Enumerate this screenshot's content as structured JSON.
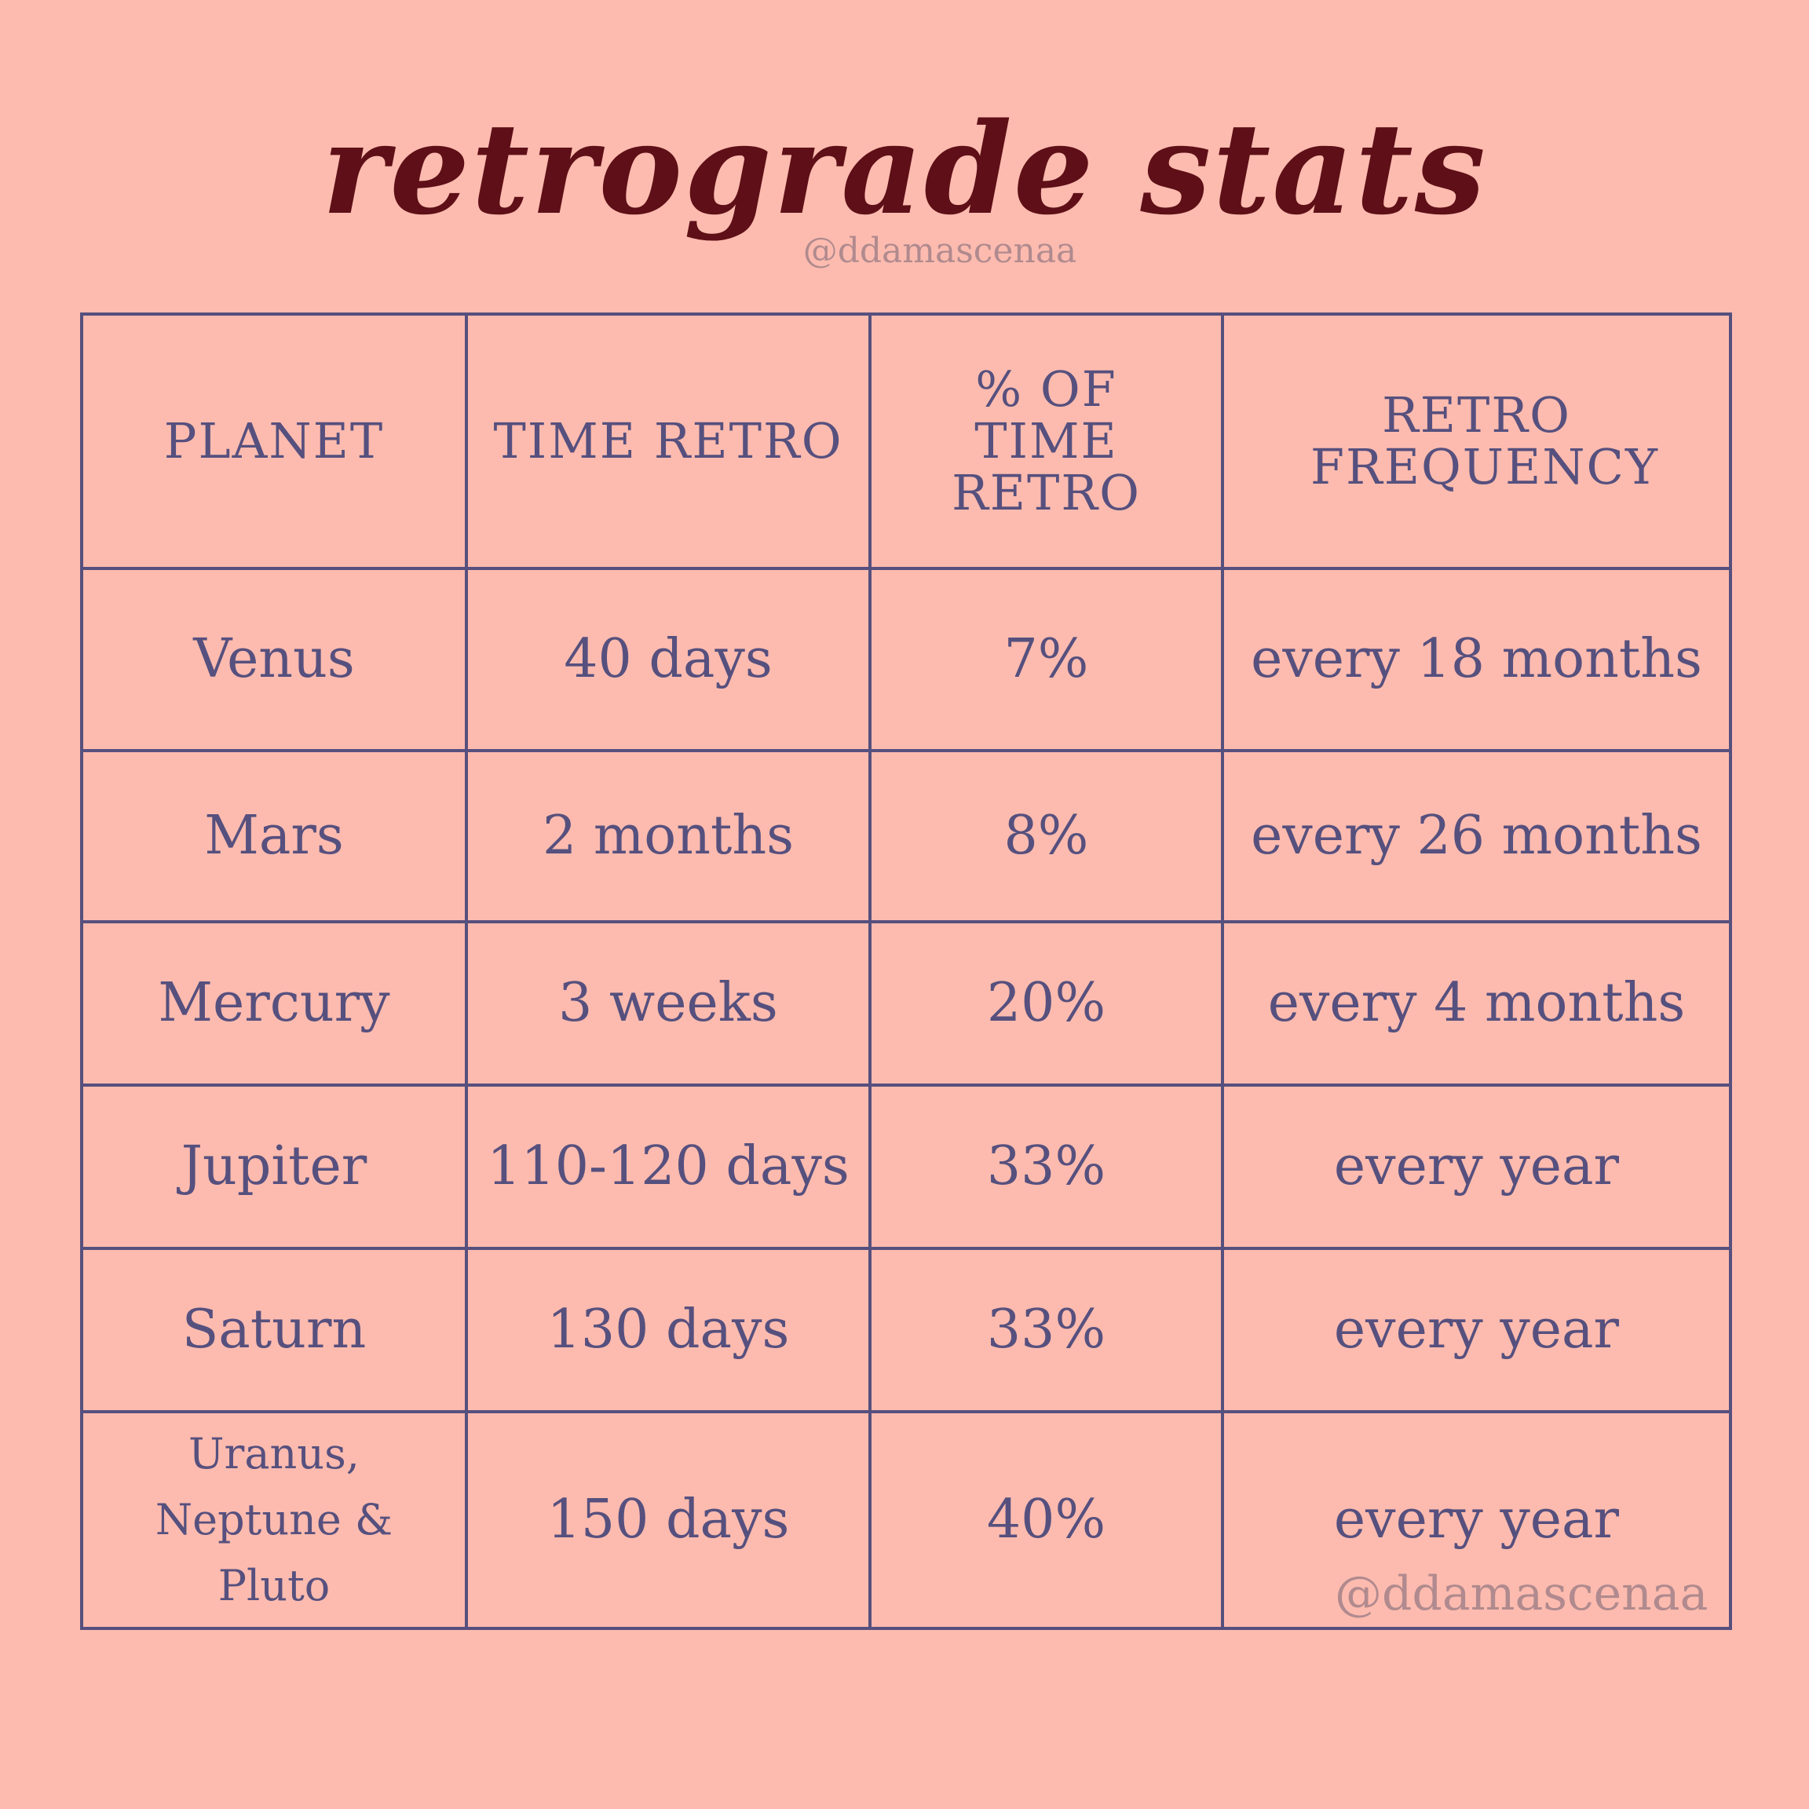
{
  "title": "retrograde stats",
  "handle_top": "@ddamascenaa",
  "handle_bottom": "@ddamascenaa",
  "colors": {
    "background": "#fdbbaf",
    "title": "#5e0f17",
    "table": "#56507e",
    "handle": "#b08a8e"
  },
  "table": {
    "headers": [
      "PLANET",
      "TIME RETRO",
      "% OF TIME RETRO",
      "RETRO FREQUENCY"
    ],
    "rows": [
      [
        "Venus",
        "40 days",
        "7%",
        "every 18 months"
      ],
      [
        "Mars",
        "2 months",
        "8%",
        "every 26 months"
      ],
      [
        "Mercury",
        "3 weeks",
        "20%",
        "every 4 months"
      ],
      [
        "Jupiter",
        "110-120 days",
        "33%",
        "every year"
      ],
      [
        "Saturn",
        "130 days",
        "33%",
        "every year"
      ],
      [
        "Uranus, Neptune & Pluto",
        "150 days",
        "40%",
        "every year"
      ]
    ]
  }
}
